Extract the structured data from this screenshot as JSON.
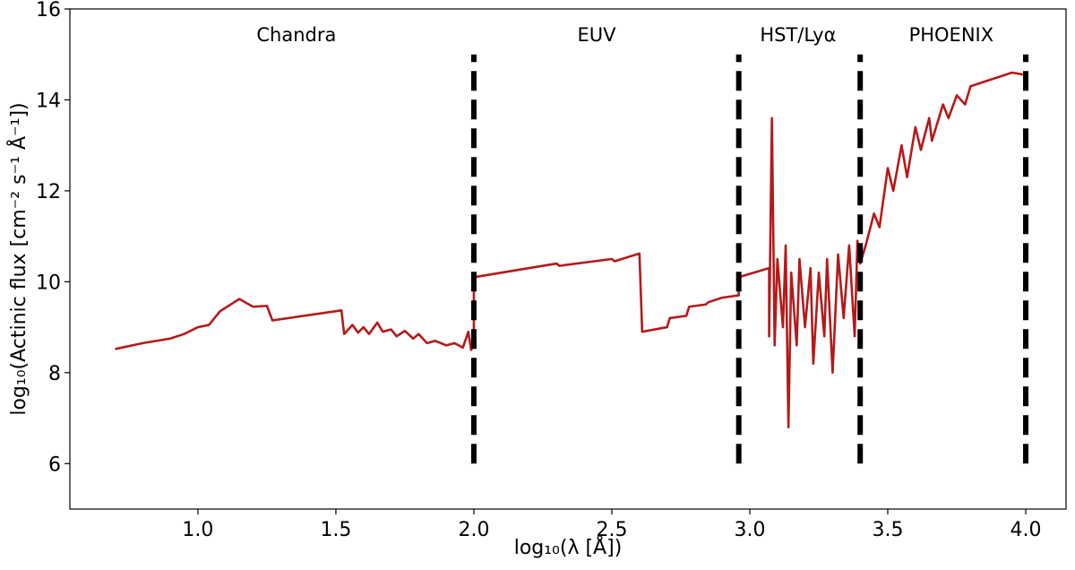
{
  "chart_data": {
    "type": "line",
    "xlabel": "log₁₀(λ [Å])",
    "ylabel": "log₁₀(Actinic flux [cm⁻² s⁻¹ Å⁻¹])",
    "xlim": [
      0.536,
      4.146
    ],
    "ylim": [
      5,
      16
    ],
    "xticks": [
      {
        "value": 1.0,
        "label": "1.0"
      },
      {
        "value": 1.5,
        "label": "1.5"
      },
      {
        "value": 2.0,
        "label": "2.0"
      },
      {
        "value": 2.5,
        "label": "2.5"
      },
      {
        "value": 3.0,
        "label": "3.0"
      },
      {
        "value": 3.5,
        "label": "3.5"
      },
      {
        "value": 4.0,
        "label": "4.0"
      }
    ],
    "yticks": [
      6,
      8,
      10,
      12,
      14,
      16
    ],
    "vlines": {
      "x": [
        2.0,
        2.96,
        3.4,
        4.0
      ],
      "ymin": 6,
      "ymax": 15,
      "color": "#000000"
    },
    "annotations": [
      {
        "text": "Chandra",
        "x": 1.357,
        "y": 15.45
      },
      {
        "text": "EUV",
        "x": 2.445,
        "y": 15.45
      },
      {
        "text": "HST/Lyα",
        "x": 3.175,
        "y": 15.45
      },
      {
        "text": "PHOENIX",
        "x": 3.73,
        "y": 15.45
      }
    ],
    "series": [
      {
        "color": "#b51a1a",
        "x": [
          0.7,
          0.8,
          0.9,
          0.95,
          1.0,
          1.04,
          1.08,
          1.15,
          1.2,
          1.25,
          1.27,
          1.52,
          1.53,
          1.56,
          1.58,
          1.6,
          1.62,
          1.65,
          1.67,
          1.7,
          1.72,
          1.75,
          1.78,
          1.8,
          1.83,
          1.86,
          1.9,
          1.93,
          1.96,
          1.98,
          1.99,
          2.0,
          2.0,
          2.3,
          2.31,
          2.5,
          2.51,
          2.6,
          2.61,
          2.7,
          2.71,
          2.77,
          2.78,
          2.84,
          2.85,
          2.9,
          2.96,
          2.96,
          3.07,
          3.07,
          3.08,
          3.09,
          3.1,
          3.12,
          3.13,
          3.14,
          3.15,
          3.17,
          3.18,
          3.2,
          3.22,
          3.23,
          3.25,
          3.27,
          3.28,
          3.3,
          3.32,
          3.34,
          3.36,
          3.38,
          3.39,
          3.4,
          3.42,
          3.45,
          3.47,
          3.5,
          3.52,
          3.55,
          3.57,
          3.6,
          3.62,
          3.65,
          3.66,
          3.7,
          3.72,
          3.75,
          3.78,
          3.8,
          3.85,
          3.9,
          3.95,
          4.0
        ],
        "values": [
          8.52,
          8.65,
          8.75,
          8.85,
          9.0,
          9.05,
          9.35,
          9.62,
          9.45,
          9.47,
          9.15,
          9.37,
          8.85,
          9.05,
          8.88,
          9.0,
          8.85,
          9.1,
          8.9,
          8.95,
          8.8,
          8.92,
          8.75,
          8.85,
          8.65,
          8.7,
          8.6,
          8.65,
          8.55,
          8.9,
          8.5,
          8.6,
          10.1,
          10.4,
          10.35,
          10.5,
          10.45,
          10.62,
          8.9,
          9.0,
          9.2,
          9.25,
          9.45,
          9.5,
          9.55,
          9.65,
          9.7,
          10.1,
          10.3,
          8.8,
          13.6,
          8.6,
          10.5,
          9.0,
          10.8,
          6.8,
          10.2,
          8.6,
          10.5,
          9.0,
          10.3,
          8.2,
          10.2,
          8.8,
          10.5,
          8.0,
          10.6,
          9.2,
          10.8,
          8.8,
          10.9,
          10.4,
          10.8,
          11.5,
          11.2,
          12.5,
          12.0,
          13.0,
          12.3,
          13.4,
          12.9,
          13.6,
          13.1,
          13.9,
          13.6,
          14.1,
          13.9,
          14.3,
          14.4,
          14.5,
          14.6,
          14.55
        ]
      }
    ]
  }
}
